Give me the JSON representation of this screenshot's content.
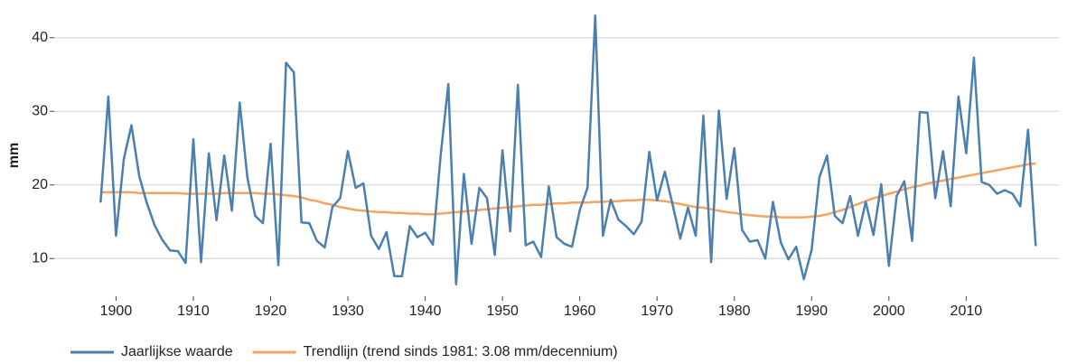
{
  "chart_data": {
    "type": "line",
    "y_label": "mm",
    "x": [
      1898,
      1899,
      1900,
      1901,
      1902,
      1903,
      1904,
      1905,
      1906,
      1907,
      1908,
      1909,
      1910,
      1911,
      1912,
      1913,
      1914,
      1915,
      1916,
      1917,
      1918,
      1919,
      1920,
      1921,
      1922,
      1923,
      1924,
      1925,
      1926,
      1927,
      1928,
      1929,
      1930,
      1931,
      1932,
      1933,
      1934,
      1935,
      1936,
      1937,
      1938,
      1939,
      1940,
      1941,
      1942,
      1943,
      1944,
      1945,
      1946,
      1947,
      1948,
      1949,
      1950,
      1951,
      1952,
      1953,
      1954,
      1955,
      1956,
      1957,
      1958,
      1959,
      1960,
      1961,
      1962,
      1963,
      1964,
      1965,
      1966,
      1967,
      1968,
      1969,
      1970,
      1971,
      1972,
      1973,
      1974,
      1975,
      1976,
      1977,
      1978,
      1979,
      1980,
      1981,
      1982,
      1983,
      1984,
      1985,
      1986,
      1987,
      1988,
      1989,
      1990,
      1991,
      1992,
      1993,
      1994,
      1995,
      1996,
      1997,
      1998,
      1999,
      2000,
      2001,
      2002,
      2003,
      2004,
      2005,
      2006,
      2007,
      2008,
      2009,
      2010,
      2011,
      2012,
      2013,
      2014,
      2015,
      2016,
      2017,
      2018,
      2019
    ],
    "series": [
      {
        "name": "Jaarlijkse waarde",
        "color": "#4a7fb0",
        "values": [
          17.6,
          32.0,
          13.1,
          23.5,
          28.1,
          21.2,
          17.5,
          14.5,
          12.5,
          11.1,
          11.0,
          9.4,
          26.2,
          9.5,
          24.3,
          15.2,
          24.0,
          16.5,
          31.2,
          21.0,
          15.8,
          14.8,
          25.6,
          9.1,
          36.6,
          35.3,
          14.9,
          14.8,
          12.4,
          11.5,
          17.0,
          18.2,
          24.6,
          19.6,
          20.2,
          13.1,
          11.3,
          13.6,
          7.6,
          7.6,
          14.4,
          12.9,
          13.5,
          11.9,
          24.0,
          33.7,
          6.5,
          21.5,
          12.0,
          19.6,
          18.2,
          10.5,
          24.7,
          13.7,
          33.6,
          11.8,
          12.3,
          10.2,
          19.8,
          12.9,
          12.0,
          11.6,
          16.6,
          19.6,
          43.0,
          13.1,
          18.0,
          15.3,
          14.4,
          13.3,
          15.0,
          24.5,
          17.9,
          21.8,
          17.4,
          12.7,
          16.9,
          13.1,
          29.4,
          9.5,
          30.1,
          18.1,
          25.0,
          13.9,
          12.3,
          12.5,
          10.0,
          17.7,
          12.2,
          9.9,
          11.6,
          7.2,
          11.2,
          21.0,
          24.0,
          15.8,
          14.8,
          18.5,
          13.1,
          17.7,
          13.2,
          20.1,
          9.0,
          18.5,
          20.5,
          12.4,
          29.9,
          29.8,
          18.2,
          24.6,
          17.1,
          32.0,
          24.3,
          37.3,
          20.4,
          20.0,
          18.8,
          19.3,
          18.8,
          17.1,
          27.5,
          11.7
        ]
      },
      {
        "name": "Trendlijn (trend sinds 1981: 3.08 mm/decennium)",
        "color": "#f4a460",
        "values": [
          19.0,
          19.0,
          19.0,
          19.0,
          19.0,
          18.9,
          18.9,
          18.9,
          18.9,
          18.9,
          18.9,
          18.8,
          18.8,
          18.8,
          18.8,
          18.8,
          18.9,
          18.9,
          18.9,
          18.9,
          18.9,
          18.8,
          18.8,
          18.7,
          18.6,
          18.5,
          18.3,
          18.0,
          17.8,
          17.5,
          17.3,
          17.0,
          16.8,
          16.6,
          16.5,
          16.4,
          16.3,
          16.3,
          16.2,
          16.2,
          16.1,
          16.1,
          16.0,
          16.0,
          16.1,
          16.2,
          16.3,
          16.4,
          16.5,
          16.6,
          16.7,
          16.8,
          16.9,
          17.0,
          17.1,
          17.2,
          17.3,
          17.3,
          17.4,
          17.5,
          17.5,
          17.6,
          17.6,
          17.6,
          17.7,
          17.7,
          17.8,
          17.8,
          17.9,
          17.9,
          18.0,
          18.0,
          17.9,
          17.8,
          17.6,
          17.4,
          17.2,
          17.0,
          16.9,
          16.7,
          16.5,
          16.3,
          16.2,
          16.0,
          15.9,
          15.8,
          15.7,
          15.7,
          15.6,
          15.6,
          15.6,
          15.6,
          15.7,
          15.8,
          16.0,
          16.3,
          16.6,
          17.0,
          17.4,
          17.8,
          18.2,
          18.5,
          18.8,
          19.1,
          19.4,
          19.7,
          19.9,
          20.2,
          20.4,
          20.6,
          20.8,
          21.0,
          21.2,
          21.4,
          21.6,
          21.8,
          22.0,
          22.2,
          22.4,
          22.6,
          22.8,
          22.9
        ]
      }
    ],
    "xlim": [
      1892,
      2022
    ],
    "ylim": [
      5,
      45
    ],
    "xticks": [
      1900,
      1910,
      1920,
      1930,
      1940,
      1950,
      1960,
      1970,
      1980,
      1990,
      2000,
      2010
    ],
    "yticks": [
      10,
      20,
      30,
      40
    ],
    "grid": true,
    "legend": "bottom"
  }
}
